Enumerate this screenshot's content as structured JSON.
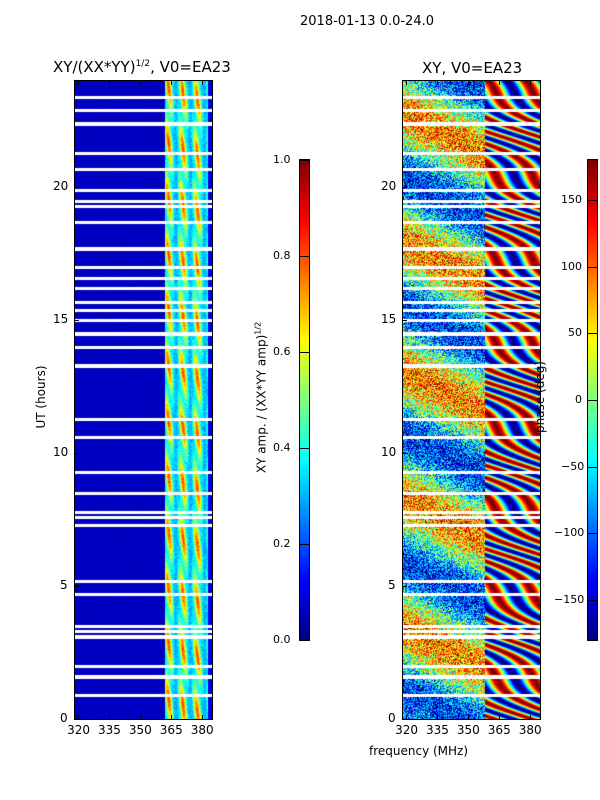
{
  "suptitle": "2018-01-13 0.0-24.0",
  "xlabel": "frequency (MHz)",
  "chart_data": [
    {
      "type": "heatmap",
      "title": "XY/(XX*YY)",
      "title_sup": "1/2",
      "title_suffix": ", V0=EA23",
      "xlabel": "frequency (MHz)",
      "ylabel": "UT (hours)",
      "xlim": [
        318.5,
        385
      ],
      "ylim": [
        0,
        24
      ],
      "xticks": [
        "320",
        "335",
        "350",
        "365",
        "380"
      ],
      "xtick_values": [
        320,
        335,
        350,
        365,
        380
      ],
      "yticks": [
        "0",
        "5",
        "10",
        "15",
        "20"
      ],
      "ytick_values": [
        0,
        5,
        10,
        15,
        20
      ],
      "colormap": "jet",
      "colorbar": {
        "label": "XY amp. / (XX*YY amp)",
        "label_sup": "1/2",
        "range": [
          0.0,
          1.0
        ],
        "ticks": [
          "0.0",
          "0.2",
          "0.4",
          "0.6",
          "0.8",
          "1.0"
        ],
        "tick_values": [
          0,
          0.2,
          0.4,
          0.6,
          0.8,
          1.0
        ]
      },
      "description_values": {
        "background_level": 0.05,
        "active_band_mhz": [
          362,
          384
        ],
        "active_band_level": [
          0.3,
          0.85
        ]
      }
    },
    {
      "type": "heatmap",
      "title": "XY, V0=EA23",
      "xlabel": "frequency (MHz)",
      "xlim": [
        318.5,
        385
      ],
      "ylim": [
        0,
        24
      ],
      "xticks": [
        "320",
        "335",
        "350",
        "365",
        "380"
      ],
      "xtick_values": [
        320,
        335,
        350,
        365,
        380
      ],
      "yticks": [
        "0",
        "5",
        "10",
        "15",
        "20"
      ],
      "ytick_values": [
        0,
        5,
        10,
        15,
        20
      ],
      "colormap": "jet",
      "colorbar": {
        "label": "phase (deg)",
        "range": [
          -180,
          180
        ],
        "ticks": [
          "−150",
          "−100",
          "−50",
          "0",
          "50",
          "100",
          "150"
        ],
        "tick_values": [
          -150,
          -100,
          -50,
          0,
          50,
          100,
          150
        ]
      }
    }
  ],
  "flagged_hours": [
    0.9,
    1.6,
    2.0,
    3.1,
    3.3,
    3.5,
    4.7,
    5.2,
    7.3,
    7.6,
    7.8,
    8.5,
    9.3,
    10.6,
    11.3,
    13.3,
    14.0,
    14.5,
    15.0,
    15.4,
    15.7,
    16.2,
    16.6,
    17.0,
    17.7,
    18.7,
    19.3,
    19.5,
    19.9,
    20.7,
    21.3,
    22.4,
    22.9,
    23.4
  ]
}
